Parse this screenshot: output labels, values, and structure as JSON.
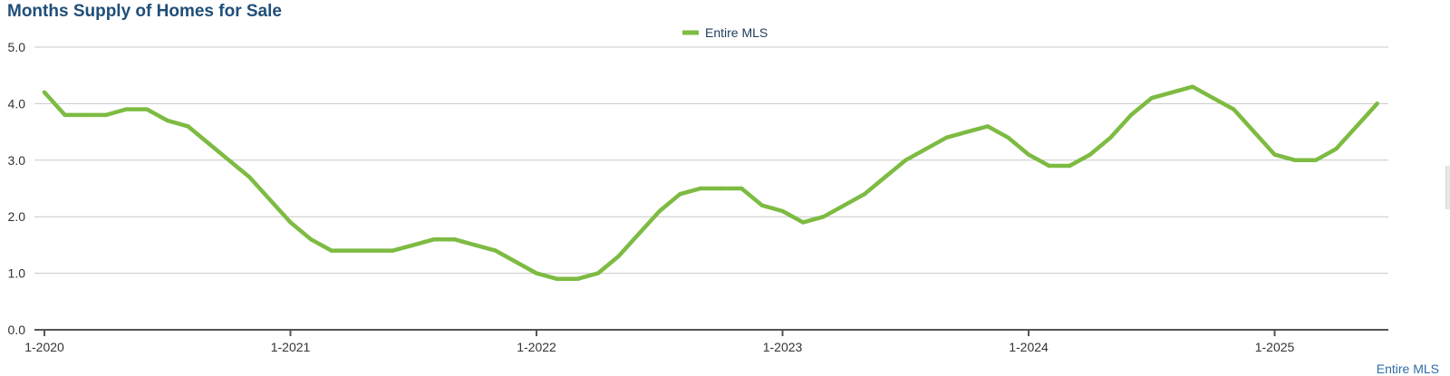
{
  "chart_data": {
    "type": "line",
    "title": "Months Supply of Homes for Sale",
    "xlabel": "",
    "ylabel": "",
    "ylim": [
      0,
      5
    ],
    "yticks": [
      "0.0",
      "1.0",
      "2.0",
      "3.0",
      "4.0",
      "5.0"
    ],
    "xticks": [
      "1-2020",
      "1-2021",
      "1-2022",
      "1-2023",
      "1-2024",
      "1-2025"
    ],
    "grid": "horizontal",
    "legend_position": "top-center",
    "series": [
      {
        "name": "Entire MLS",
        "color": "#7dbb42",
        "points": [
          [
            "2020-01",
            4.2
          ],
          [
            "2020-02",
            3.8
          ],
          [
            "2020-03",
            3.8
          ],
          [
            "2020-04",
            3.8
          ],
          [
            "2020-05",
            3.9
          ],
          [
            "2020-06",
            3.9
          ],
          [
            "2020-07",
            3.7
          ],
          [
            "2020-08",
            3.6
          ],
          [
            "2020-09",
            3.3
          ],
          [
            "2020-10",
            3.0
          ],
          [
            "2020-11",
            2.7
          ],
          [
            "2020-12",
            2.3
          ],
          [
            "2021-01",
            1.9
          ],
          [
            "2021-02",
            1.6
          ],
          [
            "2021-03",
            1.4
          ],
          [
            "2021-04",
            1.4
          ],
          [
            "2021-05",
            1.4
          ],
          [
            "2021-06",
            1.4
          ],
          [
            "2021-07",
            1.5
          ],
          [
            "2021-08",
            1.6
          ],
          [
            "2021-09",
            1.6
          ],
          [
            "2021-10",
            1.5
          ],
          [
            "2021-11",
            1.4
          ],
          [
            "2021-12",
            1.2
          ],
          [
            "2022-01",
            1.0
          ],
          [
            "2022-02",
            0.9
          ],
          [
            "2022-03",
            0.9
          ],
          [
            "2022-04",
            1.0
          ],
          [
            "2022-05",
            1.3
          ],
          [
            "2022-06",
            1.7
          ],
          [
            "2022-07",
            2.1
          ],
          [
            "2022-08",
            2.4
          ],
          [
            "2022-09",
            2.5
          ],
          [
            "2022-10",
            2.5
          ],
          [
            "2022-11",
            2.5
          ],
          [
            "2022-12",
            2.2
          ],
          [
            "2023-01",
            2.1
          ],
          [
            "2023-02",
            1.9
          ],
          [
            "2023-03",
            2.0
          ],
          [
            "2023-04",
            2.2
          ],
          [
            "2023-05",
            2.4
          ],
          [
            "2023-06",
            2.7
          ],
          [
            "2023-07",
            3.0
          ],
          [
            "2023-08",
            3.2
          ],
          [
            "2023-09",
            3.4
          ],
          [
            "2023-10",
            3.5
          ],
          [
            "2023-11",
            3.6
          ],
          [
            "2023-12",
            3.4
          ],
          [
            "2024-01",
            3.1
          ],
          [
            "2024-02",
            2.9
          ],
          [
            "2024-03",
            2.9
          ],
          [
            "2024-04",
            3.1
          ],
          [
            "2024-05",
            3.4
          ],
          [
            "2024-06",
            3.8
          ],
          [
            "2024-07",
            4.1
          ],
          [
            "2024-08",
            4.2
          ],
          [
            "2024-09",
            4.3
          ],
          [
            "2024-10",
            4.1
          ],
          [
            "2024-11",
            3.9
          ],
          [
            "2024-12",
            3.5
          ],
          [
            "2025-01",
            3.1
          ],
          [
            "2025-02",
            3.0
          ],
          [
            "2025-03",
            3.0
          ],
          [
            "2025-04",
            3.2
          ],
          [
            "2025-05",
            3.6
          ],
          [
            "2025-06",
            4.0
          ]
        ]
      }
    ]
  },
  "footer_label": "Entire MLS",
  "colors": {
    "title": "#1f4e79",
    "gridline": "#c8c8c8",
    "axis": "#555555",
    "footer_link": "#2e6da4"
  }
}
